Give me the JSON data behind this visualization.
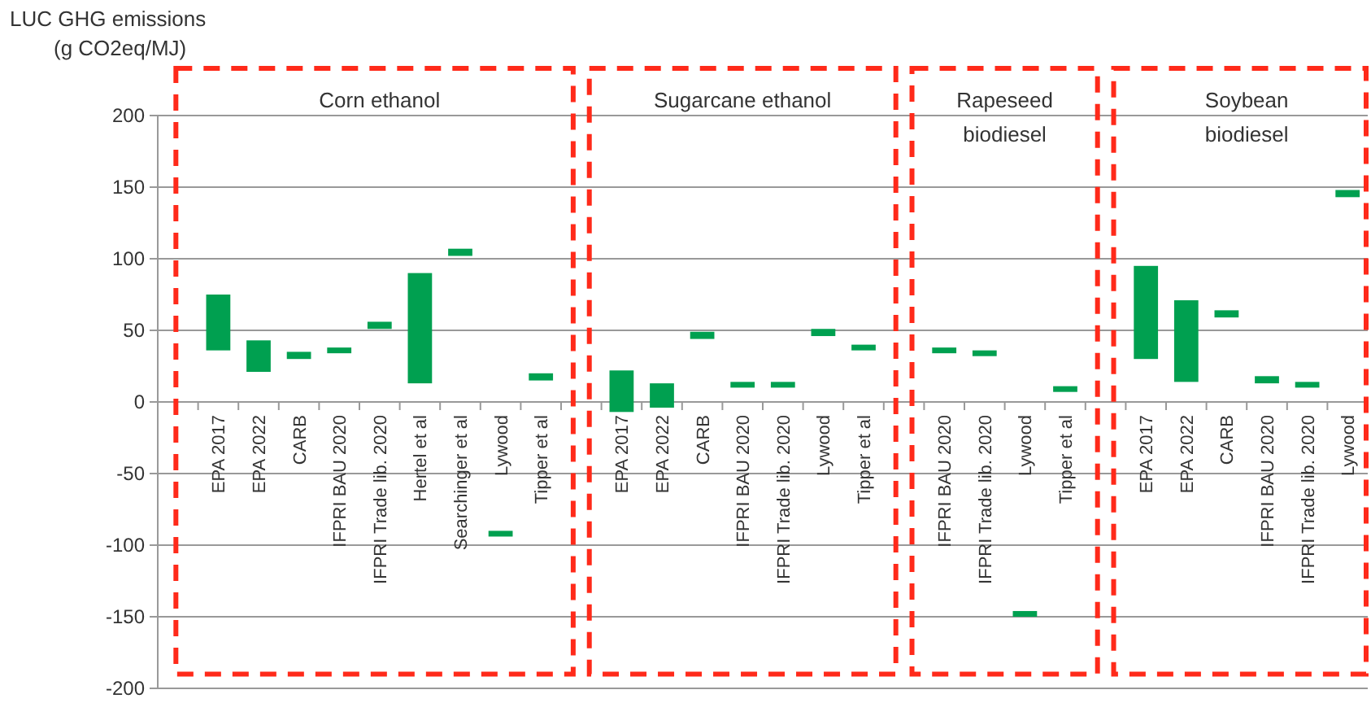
{
  "chart_data": {
    "type": "bar",
    "ylabel": "LUC GHG emissions (g CO2eq/MJ)",
    "categories": [
      null,
      "EPA 2017",
      "EPA 2022",
      "CARB",
      "IFPRI BAU 2020",
      "IFPRI Trade lib. 2020",
      "Hertel et al",
      "Searchinger et al",
      "Lywood",
      "Tipper et al",
      null,
      "EPA 2017",
      "EPA 2022",
      "CARB",
      "IFPRI BAU 2020",
      "IFPRI Trade lib. 2020",
      "Lywood",
      "Tipper et al",
      null,
      "IFPRI BAU 2020",
      "IFPRI Trade lib. 2020",
      "Lywood",
      "Tipper et al",
      null,
      "EPA 2017",
      "EPA 2022",
      "CARB",
      "IFPRI BAU 2020",
      "IFPRI Trade lib. 2020",
      "Lywood"
    ],
    "base": [
      null,
      36,
      21,
      30,
      34,
      51,
      13,
      102,
      -94,
      15,
      null,
      -7,
      -4,
      44,
      10,
      10,
      46,
      36,
      null,
      34,
      32,
      -150,
      7,
      null,
      30,
      14,
      59,
      13,
      10,
      143
    ],
    "values": [
      null,
      39,
      22,
      5,
      4,
      5,
      77,
      5,
      4,
      5,
      null,
      29,
      17,
      5,
      4,
      4,
      5,
      4,
      null,
      4,
      4,
      4,
      4,
      null,
      65,
      57,
      5,
      5,
      4,
      5
    ],
    "color": "#00a050",
    "ylim": [
      -200,
      200
    ],
    "yticks": [
      -200,
      -150,
      -100,
      -50,
      0,
      50,
      100,
      150,
      200
    ],
    "grid": "y",
    "annotations": [
      "Corn ethanol",
      "Sugarcane ethanol",
      "Rapeseed biodiesel",
      "Soybean biodiesel"
    ]
  }
}
